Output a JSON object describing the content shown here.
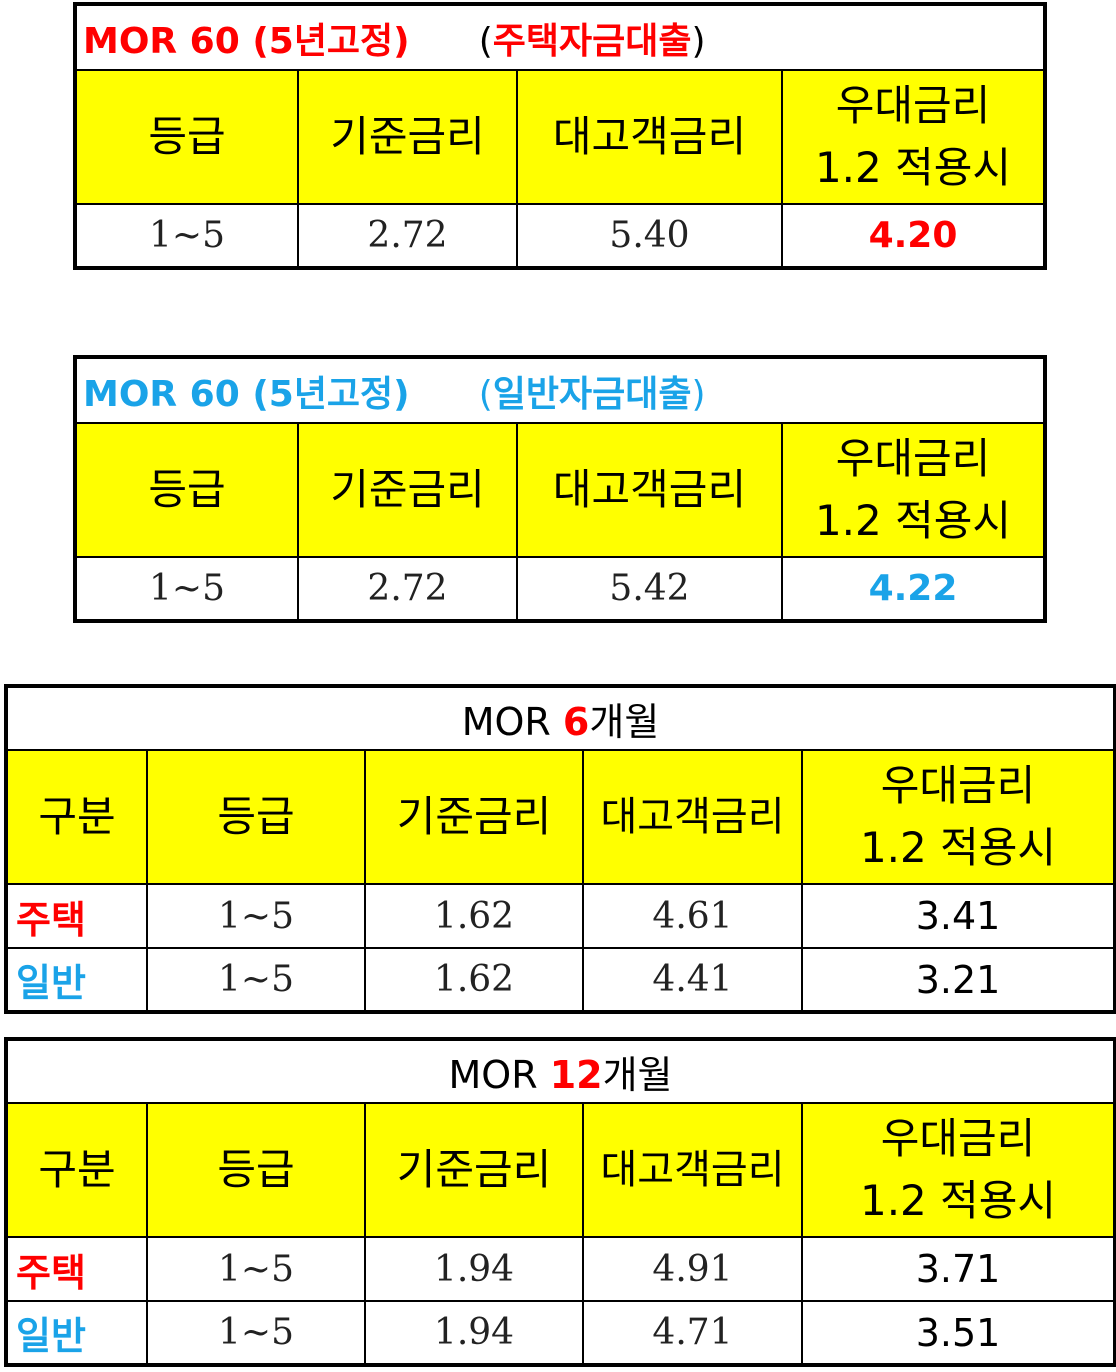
{
  "table1": {
    "title_main": "MOR 60 (5년고정)",
    "title_open": "(",
    "title_sub": "주택자금대출",
    "title_close": ")",
    "headers": [
      "등급",
      "기준금리",
      "대고객금리",
      "우대금리",
      "1.2 적용시"
    ],
    "row": [
      "1~5",
      "2.72",
      "5.40",
      "4.20"
    ],
    "accent": "#ff0000"
  },
  "table2": {
    "title_main": "MOR 60 (5년고정)",
    "title_open": "(",
    "title_sub": "일반자금대출",
    "title_close": ")",
    "headers": [
      "등급",
      "기준금리",
      "대고객금리",
      "우대금리",
      "1.2 적용시"
    ],
    "row": [
      "1~5",
      "2.72",
      "5.42",
      "4.22"
    ],
    "accent": "#1aa3e8"
  },
  "table3": {
    "title_pre": "MOR ",
    "title_num": "6",
    "title_post": "개월",
    "headers": [
      "구분",
      "등급",
      "기준금리",
      "대고객금리",
      "우대금리",
      "1.2 적용시"
    ],
    "rows": [
      [
        "주택",
        "1~5",
        "1.62",
        "4.61",
        "3.41"
      ],
      [
        "일반",
        "1~5",
        "1.62",
        "4.41",
        "3.21"
      ]
    ]
  },
  "table4": {
    "title_pre": "MOR ",
    "title_num": "12",
    "title_post": "개월",
    "headers": [
      "구분",
      "등급",
      "기준금리",
      "대고객금리",
      "우대금리",
      "1.2 적용시"
    ],
    "rows": [
      [
        "주택",
        "1~5",
        "1.94",
        "4.91",
        "3.71"
      ],
      [
        "일반",
        "1~5",
        "1.94",
        "4.71",
        "3.51"
      ]
    ]
  }
}
